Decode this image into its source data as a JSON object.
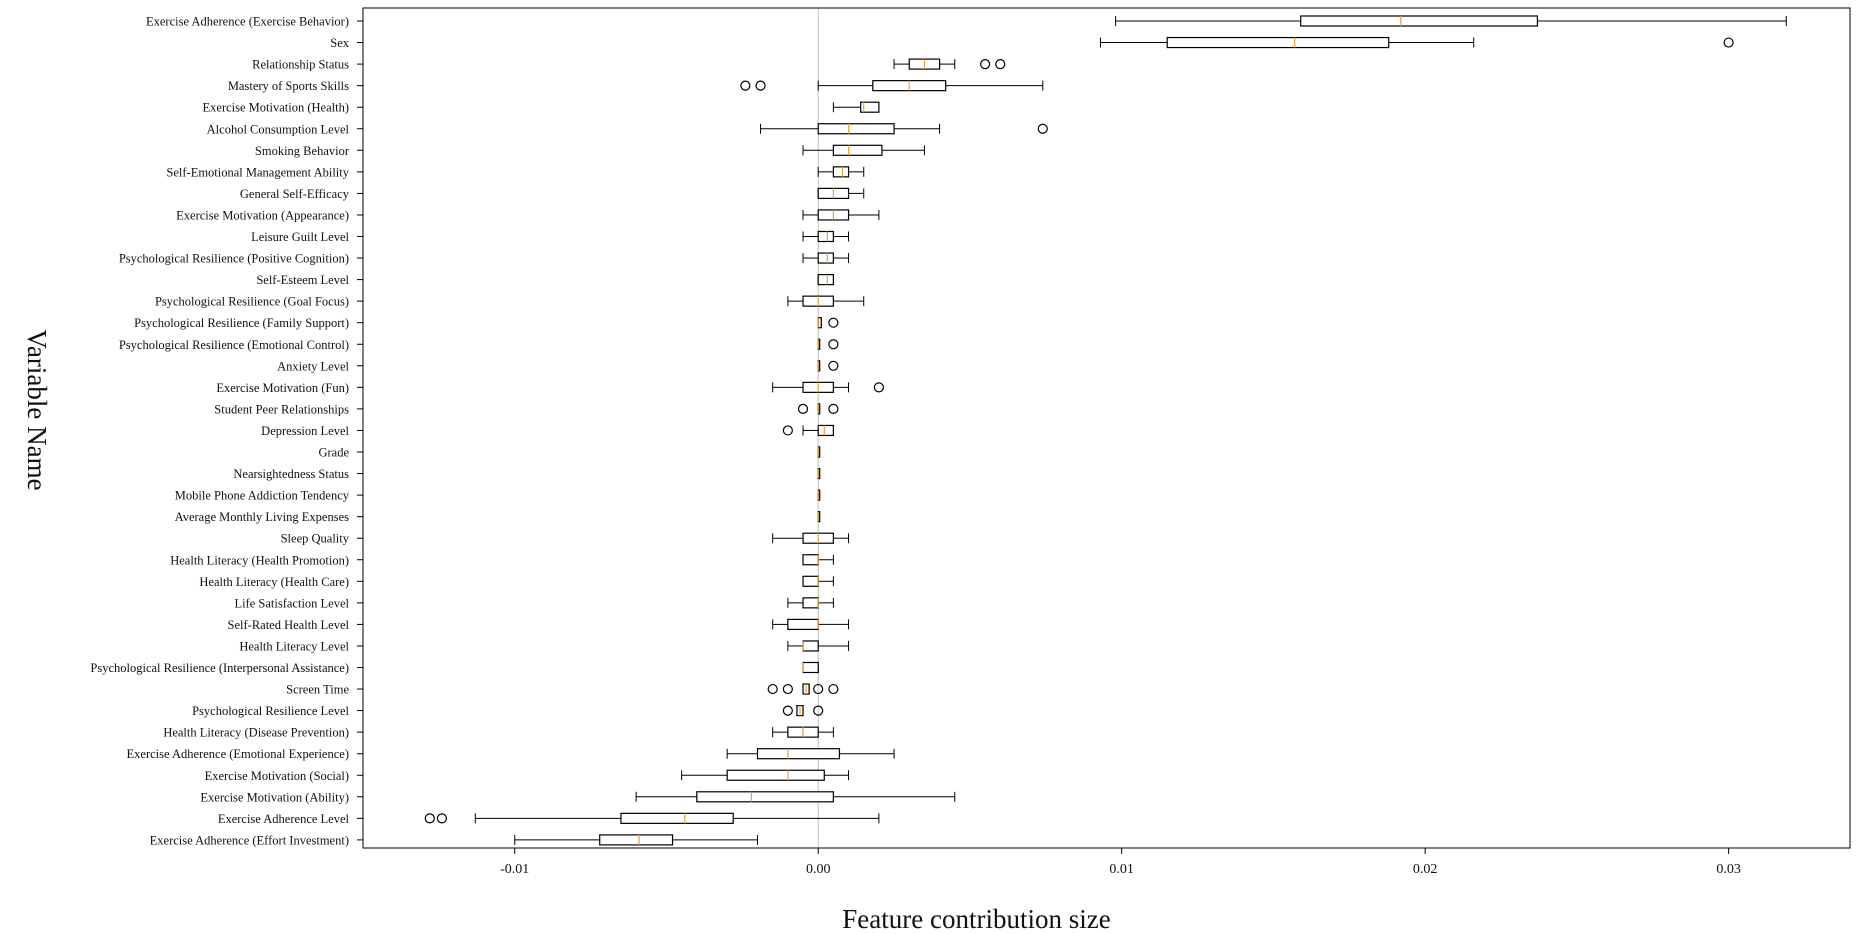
{
  "chart_data": {
    "type": "box",
    "orientation": "horizontal",
    "xlabel": "Feature contribution size",
    "ylabel": "Variable Name",
    "xlim": [
      -0.015,
      0.034
    ],
    "xticks": [
      -0.01,
      0.0,
      0.01,
      0.02,
      0.03
    ],
    "xtick_labels": [
      "-0.01",
      "0.00",
      "0.01",
      "0.02",
      "0.03"
    ],
    "reference_line_x": 0,
    "colors": {
      "box": "#000000",
      "median": "#f0a030",
      "zero_line": "#bfbfbf",
      "frame": "#000000"
    },
    "boxes": [
      {
        "label": "Exercise Adherence (Exercise Behavior)",
        "whislo": 0.0098,
        "q1": 0.0159,
        "med": 0.0192,
        "q3": 0.0237,
        "whishi": 0.0319,
        "fliers": []
      },
      {
        "label": "Sex",
        "whislo": 0.0093,
        "q1": 0.0115,
        "med": 0.0157,
        "q3": 0.0188,
        "whishi": 0.0216,
        "fliers": [
          0.03
        ]
      },
      {
        "label": "Relationship Status",
        "whislo": 0.0025,
        "q1": 0.003,
        "med": 0.0035,
        "q3": 0.004,
        "whishi": 0.0045,
        "fliers": [
          0.0055,
          0.006
        ]
      },
      {
        "label": "Mastery of Sports Skills",
        "whislo": 0.0,
        "q1": 0.0018,
        "med": 0.003,
        "q3": 0.0042,
        "whishi": 0.0074,
        "fliers": [
          -0.0024,
          -0.0019
        ]
      },
      {
        "label": "Exercise Motivation (Health)",
        "whislo": 0.0005,
        "q1": 0.0014,
        "med": 0.0015,
        "q3": 0.002,
        "whishi": 0.002,
        "fliers": []
      },
      {
        "label": "Alcohol Consumption Level",
        "whislo": -0.0019,
        "q1": 0.0,
        "med": 0.001,
        "q3": 0.0025,
        "whishi": 0.004,
        "fliers": [
          0.0074
        ]
      },
      {
        "label": "Smoking Behavior",
        "whislo": -0.0005,
        "q1": 0.0005,
        "med": 0.001,
        "q3": 0.0021,
        "whishi": 0.0035,
        "fliers": []
      },
      {
        "label": "Self-Emotional Management Ability",
        "whislo": 0.0,
        "q1": 0.0005,
        "med": 0.0008,
        "q3": 0.001,
        "whishi": 0.0015,
        "fliers": []
      },
      {
        "label": "General Self-Efficacy",
        "whislo": 0.0,
        "q1": 0.0,
        "med": 0.0005,
        "q3": 0.001,
        "whishi": 0.0015,
        "fliers": []
      },
      {
        "label": "Exercise Motivation (Appearance)",
        "whislo": -0.0005,
        "q1": 0.0,
        "med": 0.0005,
        "q3": 0.001,
        "whishi": 0.002,
        "fliers": []
      },
      {
        "label": "Leisure Guilt Level",
        "whislo": -0.0005,
        "q1": 0.0,
        "med": 0.0003,
        "q3": 0.0005,
        "whishi": 0.001,
        "fliers": []
      },
      {
        "label": "Psychological Resilience (Positive Cognition)",
        "whislo": -0.0005,
        "q1": 0.0,
        "med": 0.0003,
        "q3": 0.0005,
        "whishi": 0.001,
        "fliers": []
      },
      {
        "label": "Self-Esteem Level",
        "whislo": 0.0,
        "q1": 0.0,
        "med": 0.0003,
        "q3": 0.0005,
        "whishi": 0.0005,
        "fliers": []
      },
      {
        "label": "Psychological Resilience (Goal Focus)",
        "whislo": -0.001,
        "q1": -0.0005,
        "med": 0.0,
        "q3": 0.0005,
        "whishi": 0.0015,
        "fliers": []
      },
      {
        "label": "Psychological Resilience (Family Support)",
        "whislo": 0.0,
        "q1": 0.0,
        "med": 0.0,
        "q3": 0.0001,
        "whishi": 0.0001,
        "fliers": [
          0.0005
        ]
      },
      {
        "label": "Psychological Resilience (Emotional Control)",
        "whislo": 0.0,
        "q1": 0.0,
        "med": 0.0,
        "q3": 0.0,
        "whishi": 0.0,
        "fliers": [
          0.0005
        ]
      },
      {
        "label": "Anxiety Level",
        "whislo": 0.0,
        "q1": 0.0,
        "med": 0.0,
        "q3": 0.0,
        "whishi": 0.0,
        "fliers": [
          0.0005
        ]
      },
      {
        "label": "Exercise Motivation (Fun)",
        "whislo": -0.0015,
        "q1": -0.0005,
        "med": 0.0,
        "q3": 0.0005,
        "whishi": 0.001,
        "fliers": [
          0.002
        ]
      },
      {
        "label": "Student Peer Relationships",
        "whislo": 0.0,
        "q1": 0.0,
        "med": 0.0,
        "q3": 0.0,
        "whishi": 0.0,
        "fliers": [
          -0.0005,
          0.0005
        ]
      },
      {
        "label": "Depression Level",
        "whislo": -0.0005,
        "q1": 0.0,
        "med": 0.0002,
        "q3": 0.0005,
        "whishi": 0.0005,
        "fliers": [
          -0.001
        ]
      },
      {
        "label": "Grade",
        "whislo": 0.0,
        "q1": 0.0,
        "med": 0.0,
        "q3": 0.0,
        "whishi": 0.0,
        "fliers": []
      },
      {
        "label": "Nearsightedness Status",
        "whislo": 0.0,
        "q1": 0.0,
        "med": 0.0,
        "q3": 0.0,
        "whishi": 0.0,
        "fliers": []
      },
      {
        "label": "Mobile Phone Addiction Tendency",
        "whislo": 0.0,
        "q1": 0.0,
        "med": 0.0,
        "q3": 0.0,
        "whishi": 0.0,
        "fliers": []
      },
      {
        "label": "Average Monthly Living Expenses",
        "whislo": 0.0,
        "q1": 0.0,
        "med": 0.0,
        "q3": 0.0,
        "whishi": 0.0,
        "fliers": []
      },
      {
        "label": "Sleep Quality",
        "whislo": -0.0015,
        "q1": -0.0005,
        "med": 0.0,
        "q3": 0.0005,
        "whishi": 0.001,
        "fliers": []
      },
      {
        "label": "Health Literacy (Health Promotion)",
        "whislo": -0.0005,
        "q1": -0.0005,
        "med": 0.0,
        "q3": 0.0,
        "whishi": 0.0005,
        "fliers": []
      },
      {
        "label": "Health Literacy (Health Care)",
        "whislo": -0.0005,
        "q1": -0.0005,
        "med": 0.0,
        "q3": 0.0,
        "whishi": 0.0005,
        "fliers": []
      },
      {
        "label": "Life Satisfaction Level",
        "whislo": -0.001,
        "q1": -0.0005,
        "med": 0.0,
        "q3": 0.0,
        "whishi": 0.0005,
        "fliers": []
      },
      {
        "label": "Self-Rated Health Level",
        "whislo": -0.0015,
        "q1": -0.001,
        "med": 0.0,
        "q3": 0.0,
        "whishi": 0.001,
        "fliers": []
      },
      {
        "label": "Health Literacy Level",
        "whislo": -0.001,
        "q1": -0.0005,
        "med": -0.0005,
        "q3": 0.0,
        "whishi": 0.001,
        "fliers": []
      },
      {
        "label": "Psychological Resilience (Interpersonal Assistance)",
        "whislo": -0.0005,
        "q1": -0.0005,
        "med": -0.0005,
        "q3": 0.0,
        "whishi": 0.0,
        "fliers": []
      },
      {
        "label": "Screen Time",
        "whislo": -0.0005,
        "q1": -0.0005,
        "med": -0.0004,
        "q3": -0.0003,
        "whishi": -0.0003,
        "fliers": [
          -0.0015,
          -0.001,
          0.0,
          0.0005
        ]
      },
      {
        "label": "Psychological Resilience Level",
        "whislo": -0.0007,
        "q1": -0.0007,
        "med": -0.0006,
        "q3": -0.0005,
        "whishi": -0.0005,
        "fliers": [
          -0.001,
          0.0
        ]
      },
      {
        "label": "Health Literacy (Disease Prevention)",
        "whislo": -0.0015,
        "q1": -0.001,
        "med": -0.0005,
        "q3": 0.0,
        "whishi": 0.0005,
        "fliers": []
      },
      {
        "label": "Exercise Adherence (Emotional Experience)",
        "whislo": -0.003,
        "q1": -0.002,
        "med": -0.001,
        "q3": 0.0007,
        "whishi": 0.0025,
        "fliers": []
      },
      {
        "label": "Exercise Motivation (Social)",
        "whislo": -0.0045,
        "q1": -0.003,
        "med": -0.001,
        "q3": 0.0002,
        "whishi": 0.001,
        "fliers": []
      },
      {
        "label": "Exercise Motivation (Ability)",
        "whislo": -0.006,
        "q1": -0.004,
        "med": -0.0022,
        "q3": 0.0005,
        "whishi": 0.0045,
        "fliers": []
      },
      {
        "label": "Exercise Adherence Level",
        "whislo": -0.0113,
        "q1": -0.0065,
        "med": -0.0044,
        "q3": -0.0028,
        "whishi": 0.002,
        "fliers": [
          -0.0128,
          -0.0124
        ]
      },
      {
        "label": "Exercise Adherence (Effort Investment)",
        "whislo": -0.01,
        "q1": -0.0072,
        "med": -0.0059,
        "q3": -0.0048,
        "whishi": -0.002,
        "fliers": []
      }
    ]
  }
}
